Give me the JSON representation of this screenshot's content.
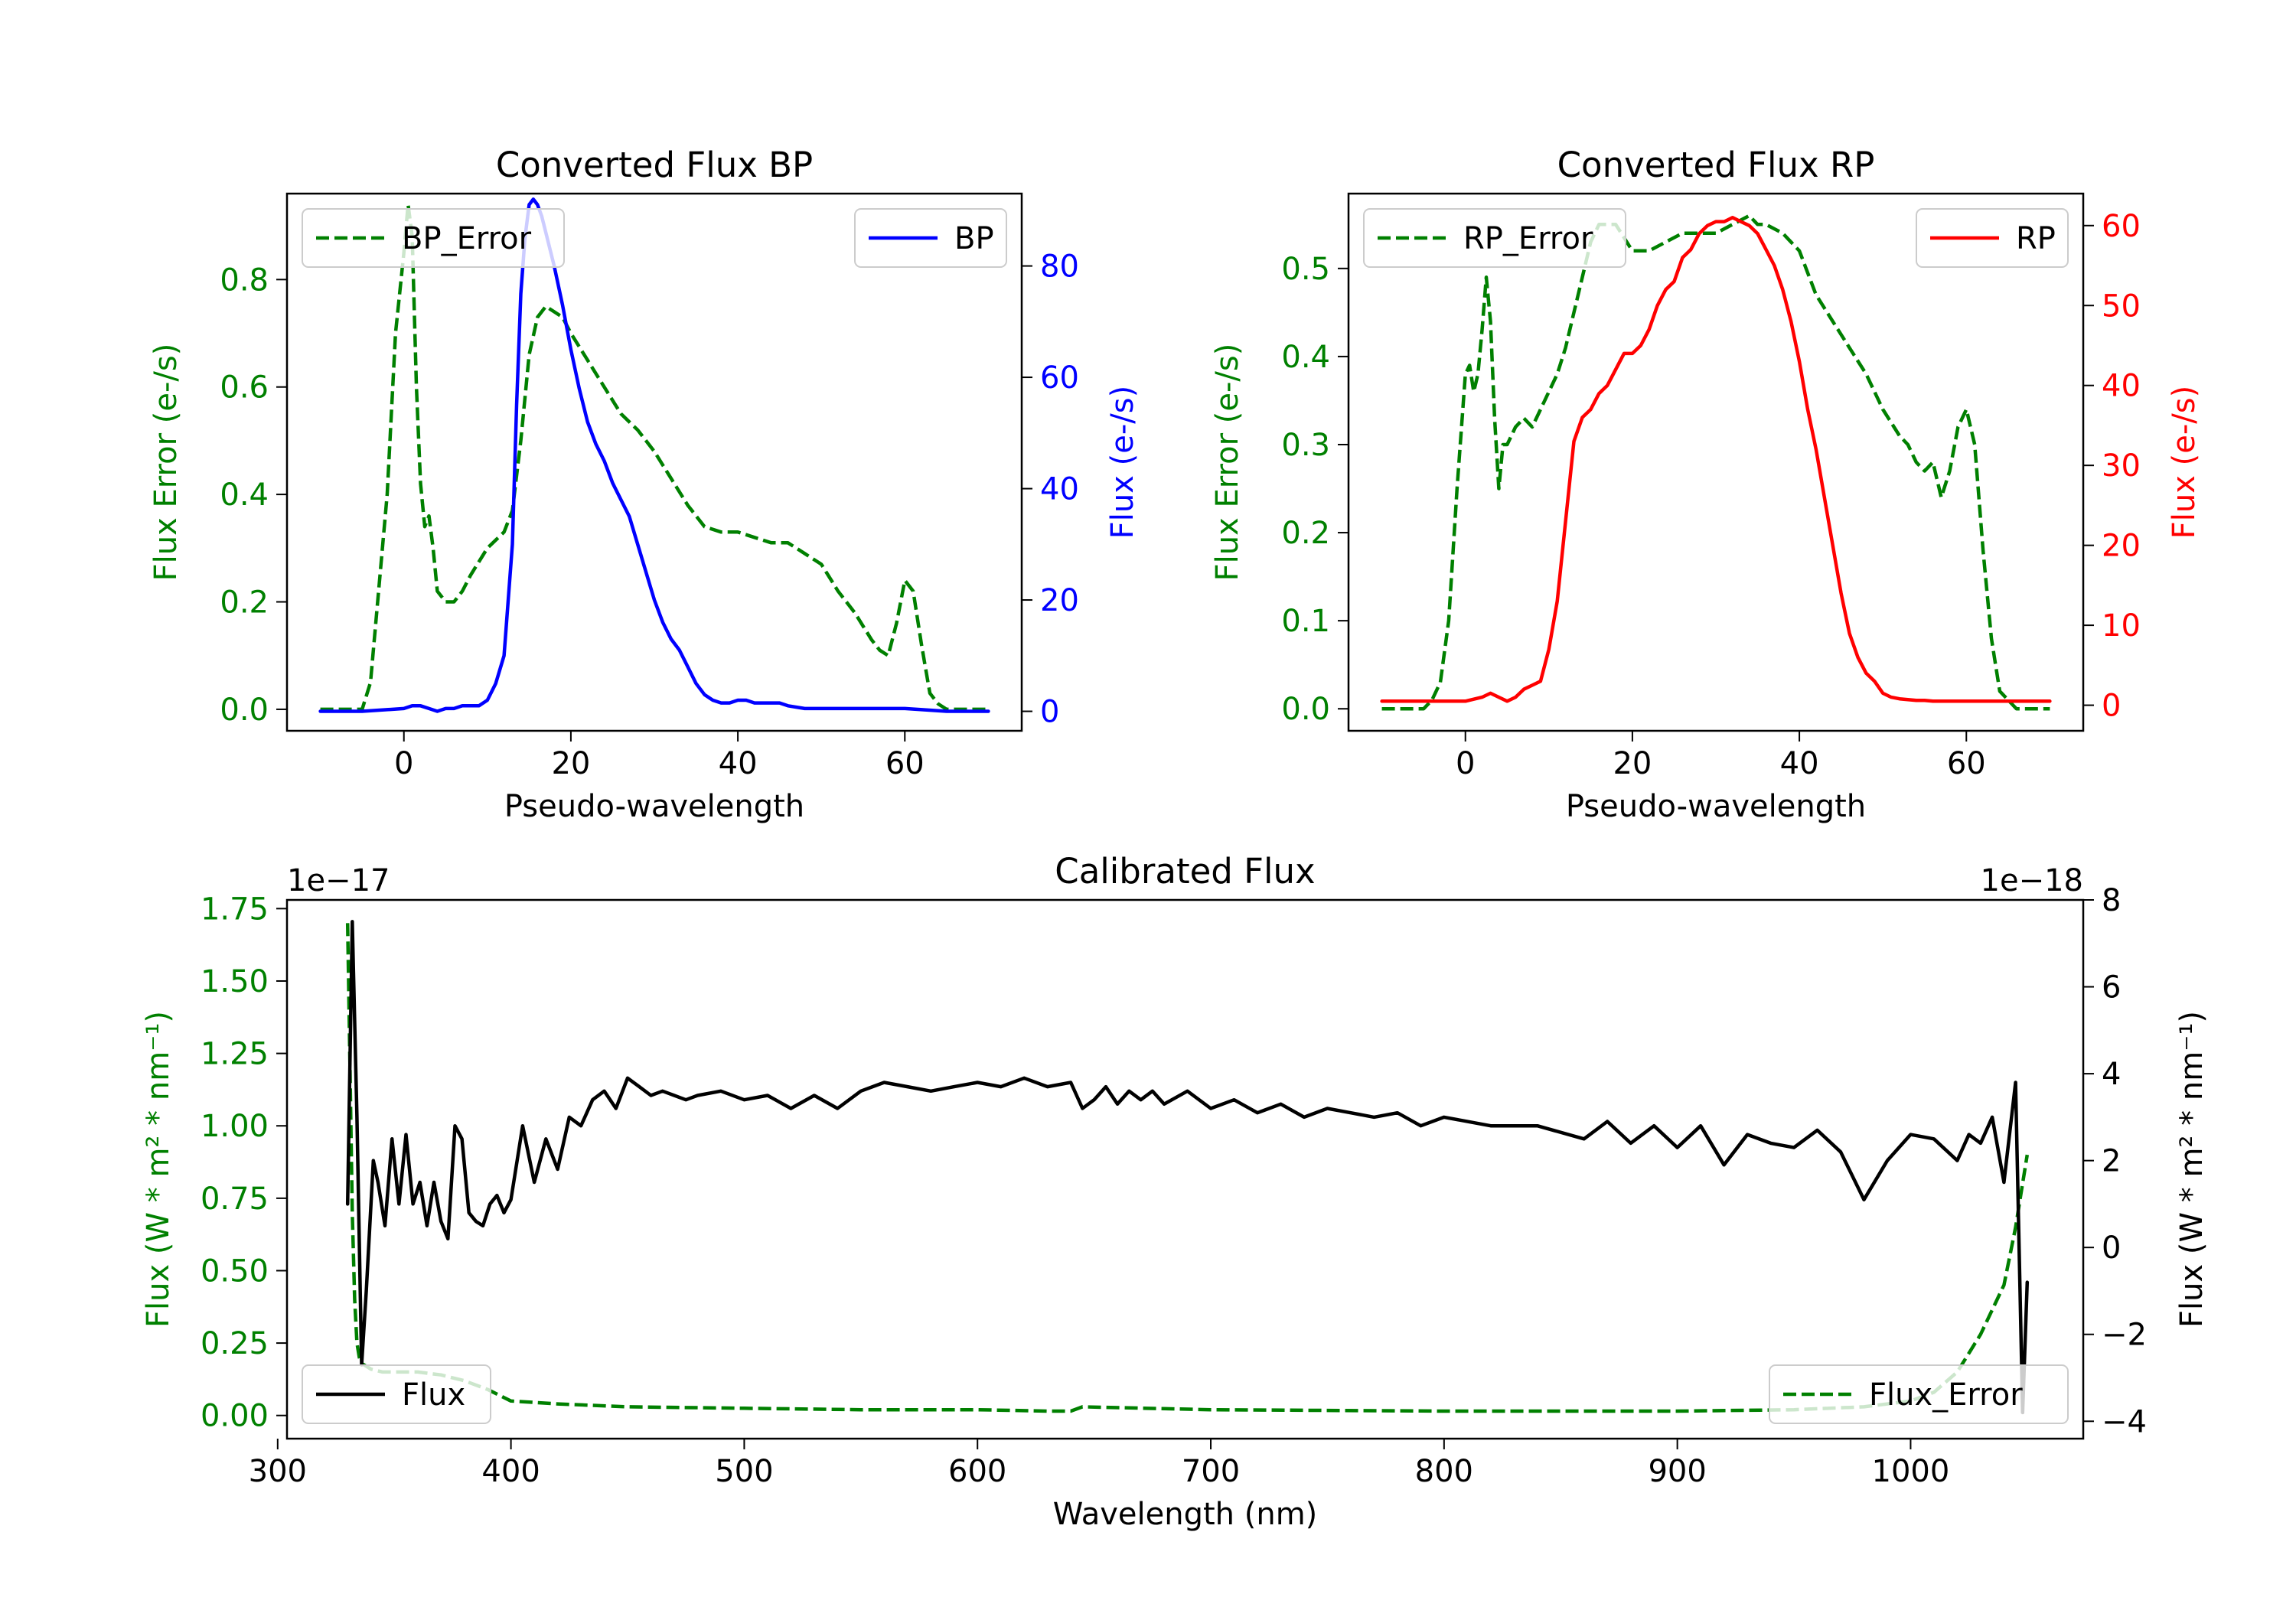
{
  "colors": {
    "green": "#008000",
    "blue": "#0000ff",
    "red": "#ff0000",
    "black": "#000000",
    "legend_border": "#cccccc"
  },
  "chart_data": [
    {
      "id": "bp",
      "type": "line",
      "title": "Converted Flux BP",
      "xlabel": "Pseudo-wavelength",
      "ylabel_left": "Flux Error (e-/s)",
      "ylabel_right": "Flux (e-/s)",
      "xlim": [
        -14,
        74
      ],
      "ylim_left": [
        -0.04,
        0.96
      ],
      "ylim_right": [
        -3.5,
        93
      ],
      "xticks": [
        0,
        20,
        40,
        60
      ],
      "xtick_labels": [
        "0",
        "20",
        "40",
        "60"
      ],
      "yticks_left": [
        0.0,
        0.2,
        0.4,
        0.6,
        0.8
      ],
      "ytick_labels_left": [
        "0.0",
        "0.2",
        "0.4",
        "0.6",
        "0.8"
      ],
      "yticks_right": [
        0,
        20,
        40,
        60,
        80
      ],
      "ytick_labels_right": [
        "0",
        "20",
        "40",
        "60",
        "80"
      ],
      "legend_left": "BP_Error",
      "legend_right": "BP",
      "series": [
        {
          "name": "BP_Error",
          "axis": "left",
          "color": "green",
          "style": "dashed",
          "x": [
            -10,
            -5,
            -4,
            -2,
            -1,
            0,
            0.5,
            1,
            1.5,
            2,
            2.5,
            3,
            3.5,
            4,
            5,
            6,
            7,
            8,
            10,
            12,
            13,
            14,
            15,
            16,
            17,
            18,
            19,
            20,
            22,
            24,
            26,
            28,
            30,
            32,
            34,
            36,
            38,
            40,
            42,
            44,
            46,
            48,
            50,
            52,
            54,
            56,
            57,
            58,
            59,
            60,
            61,
            62,
            63,
            64,
            65,
            67,
            70
          ],
          "y": [
            0,
            0,
            0.05,
            0.4,
            0.7,
            0.85,
            0.94,
            0.88,
            0.6,
            0.42,
            0.34,
            0.36,
            0.3,
            0.22,
            0.2,
            0.2,
            0.22,
            0.25,
            0.3,
            0.33,
            0.37,
            0.5,
            0.66,
            0.73,
            0.75,
            0.74,
            0.73,
            0.7,
            0.65,
            0.6,
            0.55,
            0.52,
            0.48,
            0.43,
            0.38,
            0.34,
            0.33,
            0.33,
            0.32,
            0.31,
            0.31,
            0.29,
            0.27,
            0.22,
            0.18,
            0.13,
            0.11,
            0.1,
            0.16,
            0.24,
            0.22,
            0.12,
            0.03,
            0.01,
            0,
            0,
            0
          ]
        },
        {
          "name": "BP",
          "axis": "right",
          "color": "blue",
          "style": "solid",
          "x": [
            -10,
            -5,
            0,
            1,
            2,
            3,
            4,
            5,
            6,
            7,
            8,
            9,
            10,
            11,
            12,
            13,
            13.5,
            14,
            14.5,
            15,
            15.5,
            16,
            16.5,
            17,
            18,
            19,
            20,
            21,
            22,
            23,
            24,
            25,
            26,
            27,
            28,
            29,
            30,
            31,
            32,
            33,
            34,
            35,
            36,
            37,
            38,
            39,
            40,
            41,
            42,
            43,
            44,
            45,
            46,
            48,
            50,
            55,
            60,
            65,
            70
          ],
          "y": [
            0,
            0,
            0.5,
            1,
            1,
            0.5,
            0,
            0.5,
            0.5,
            1,
            1,
            1,
            2,
            5,
            10,
            30,
            55,
            75,
            85,
            91,
            92,
            91,
            89,
            86,
            80,
            73,
            65,
            58,
            52,
            48,
            45,
            41,
            38,
            35,
            30,
            25,
            20,
            16,
            13,
            11,
            8,
            5,
            3,
            2,
            1.5,
            1.5,
            2,
            2,
            1.5,
            1.5,
            1.5,
            1.5,
            1,
            0.5,
            0.5,
            0.5,
            0.5,
            0,
            0
          ]
        }
      ]
    },
    {
      "id": "rp",
      "type": "line",
      "title": "Converted Flux RP",
      "xlabel": "Pseudo-wavelength",
      "ylabel_left": "Flux Error (e-/s)",
      "ylabel_right": "Flux (e-/s)",
      "xlim": [
        -14,
        74
      ],
      "ylim_left": [
        -0.025,
        0.585
      ],
      "ylim_right": [
        -3.2,
        64
      ],
      "xticks": [
        0,
        20,
        40,
        60
      ],
      "xtick_labels": [
        "0",
        "20",
        "40",
        "60"
      ],
      "yticks_left": [
        0.0,
        0.1,
        0.2,
        0.3,
        0.4,
        0.5
      ],
      "ytick_labels_left": [
        "0.0",
        "0.1",
        "0.2",
        "0.3",
        "0.4",
        "0.5"
      ],
      "yticks_right": [
        0,
        10,
        20,
        30,
        40,
        50,
        60
      ],
      "ytick_labels_right": [
        "0",
        "10",
        "20",
        "30",
        "40",
        "50",
        "60"
      ],
      "legend_left": "RP_Error",
      "legend_right": "RP",
      "series": [
        {
          "name": "RP_Error",
          "axis": "left",
          "color": "green",
          "style": "dashed",
          "x": [
            -10,
            -5,
            -4,
            -3,
            -2,
            -1,
            0,
            0.5,
            1,
            1.5,
            2,
            2.5,
            3,
            3.5,
            4,
            4.5,
            5,
            6,
            7,
            8,
            9,
            10,
            11,
            12,
            13,
            14,
            15,
            16,
            18,
            20,
            22,
            24,
            26,
            28,
            30,
            32,
            34,
            35,
            36,
            38,
            40,
            42,
            44,
            46,
            48,
            50,
            52,
            53,
            54,
            55,
            56,
            57,
            58,
            59,
            60,
            61,
            62,
            63,
            64,
            66,
            70
          ],
          "y": [
            0,
            0,
            0.01,
            0.03,
            0.1,
            0.25,
            0.38,
            0.39,
            0.36,
            0.38,
            0.43,
            0.49,
            0.44,
            0.33,
            0.25,
            0.3,
            0.3,
            0.32,
            0.33,
            0.32,
            0.34,
            0.36,
            0.38,
            0.41,
            0.45,
            0.49,
            0.53,
            0.55,
            0.55,
            0.52,
            0.52,
            0.53,
            0.54,
            0.54,
            0.54,
            0.55,
            0.56,
            0.55,
            0.55,
            0.54,
            0.52,
            0.47,
            0.44,
            0.41,
            0.38,
            0.34,
            0.31,
            0.3,
            0.28,
            0.27,
            0.28,
            0.24,
            0.27,
            0.32,
            0.34,
            0.3,
            0.18,
            0.08,
            0.02,
            0,
            0
          ]
        },
        {
          "name": "RP",
          "axis": "right",
          "color": "red",
          "style": "solid",
          "x": [
            -10,
            -5,
            0,
            2,
            3,
            4,
            5,
            6,
            7,
            8,
            9,
            10,
            11,
            12,
            13,
            14,
            15,
            16,
            17,
            18,
            19,
            20,
            21,
            22,
            23,
            24,
            25,
            26,
            27,
            28,
            29,
            30,
            31,
            32,
            33,
            34,
            35,
            36,
            37,
            38,
            39,
            40,
            41,
            42,
            43,
            44,
            45,
            46,
            47,
            48,
            49,
            50,
            51,
            52,
            53,
            54,
            55,
            56,
            58,
            60,
            65,
            70
          ],
          "y": [
            0.5,
            0.5,
            0.5,
            1,
            1.5,
            1,
            0.5,
            1,
            2,
            2.5,
            3,
            7,
            13,
            23,
            33,
            36,
            37,
            39,
            40,
            42,
            44,
            44,
            45,
            47,
            50,
            52,
            53,
            56,
            57,
            59,
            60,
            60.5,
            60.5,
            61,
            60.5,
            60,
            59,
            57,
            55,
            52,
            48,
            43,
            37,
            32,
            26,
            20,
            14,
            9,
            6,
            4,
            3,
            1.5,
            1,
            0.8,
            0.7,
            0.6,
            0.6,
            0.5,
            0.5,
            0.5,
            0.5,
            0.5
          ]
        }
      ]
    },
    {
      "id": "calibrated",
      "type": "line",
      "title": "Calibrated Flux",
      "xlabel": "Wavelength (nm)",
      "ylabel_left": "Flux (W * m² * nm⁻¹)",
      "ylabel_right": "Flux (W * m² * nm⁻¹)",
      "offset_left": "1e−17",
      "offset_right": "1e−18",
      "xlim": [
        304,
        1074
      ],
      "ylim_left": [
        -0.08,
        1.78
      ],
      "ylim_right": [
        -4.4,
        8.0
      ],
      "xticks": [
        300,
        400,
        500,
        600,
        700,
        800,
        900,
        1000
      ],
      "xtick_labels": [
        "300",
        "400",
        "500",
        "600",
        "700",
        "800",
        "900",
        "1000"
      ],
      "yticks_left": [
        0.0,
        0.25,
        0.5,
        0.75,
        1.0,
        1.25,
        1.5,
        1.75
      ],
      "ytick_labels_left": [
        "0.00",
        "0.25",
        "0.50",
        "0.75",
        "1.00",
        "1.25",
        "1.50",
        "1.75"
      ],
      "yticks_right": [
        -4,
        -2,
        0,
        2,
        4,
        6,
        8
      ],
      "ytick_labels_right": [
        "−4",
        "−2",
        "0",
        "2",
        "4",
        "6",
        "8"
      ],
      "legend_left": "Flux",
      "legend_right": "Flux_Error",
      "series": [
        {
          "name": "Flux_Error",
          "axis": "left",
          "color": "green",
          "style": "dashed",
          "x": [
            330,
            331,
            332,
            333,
            334,
            335,
            336,
            338,
            340,
            345,
            350,
            360,
            370,
            380,
            390,
            400,
            420,
            450,
            500,
            550,
            600,
            630,
            640,
            645,
            700,
            800,
            900,
            950,
            980,
            1000,
            1010,
            1020,
            1030,
            1040,
            1045,
            1050
          ],
          "y": [
            1.7,
            1.2,
            0.7,
            0.4,
            0.25,
            0.2,
            0.18,
            0.17,
            0.16,
            0.15,
            0.15,
            0.15,
            0.14,
            0.12,
            0.09,
            0.05,
            0.04,
            0.03,
            0.025,
            0.02,
            0.02,
            0.015,
            0.015,
            0.03,
            0.02,
            0.015,
            0.015,
            0.02,
            0.03,
            0.05,
            0.08,
            0.15,
            0.28,
            0.45,
            0.65,
            0.9
          ]
        },
        {
          "name": "Flux",
          "axis": "right",
          "color": "black",
          "style": "solid",
          "x": [
            330,
            332,
            334,
            336,
            338,
            341,
            343,
            346,
            349,
            352,
            355,
            358,
            361,
            364,
            367,
            370,
            373,
            376,
            379,
            382,
            385,
            388,
            391,
            394,
            397,
            400,
            405,
            410,
            415,
            420,
            425,
            430,
            435,
            440,
            445,
            450,
            455,
            460,
            465,
            470,
            475,
            480,
            490,
            500,
            510,
            520,
            530,
            540,
            550,
            560,
            570,
            580,
            590,
            600,
            610,
            620,
            630,
            640,
            645,
            650,
            655,
            660,
            665,
            670,
            675,
            680,
            690,
            700,
            710,
            720,
            730,
            740,
            750,
            760,
            770,
            780,
            790,
            800,
            820,
            840,
            860,
            870,
            880,
            890,
            900,
            910,
            920,
            930,
            940,
            950,
            960,
            970,
            980,
            990,
            1000,
            1010,
            1020,
            1025,
            1030,
            1035,
            1040,
            1045,
            1048,
            1050
          ],
          "y": [
            1,
            7.5,
            3,
            -2.7,
            -1,
            2,
            1.5,
            0.5,
            2.5,
            1,
            2.6,
            1,
            1.5,
            0.5,
            1.5,
            0.6,
            0.2,
            2.8,
            2.5,
            0.8,
            0.6,
            0.5,
            1,
            1.2,
            0.8,
            1.1,
            2.8,
            1.5,
            2.5,
            1.8,
            3,
            2.8,
            3.4,
            3.6,
            3.2,
            3.9,
            3.7,
            3.5,
            3.6,
            3.5,
            3.4,
            3.5,
            3.6,
            3.4,
            3.5,
            3.2,
            3.5,
            3.2,
            3.6,
            3.8,
            3.7,
            3.6,
            3.7,
            3.8,
            3.7,
            3.9,
            3.7,
            3.8,
            3.2,
            3.4,
            3.7,
            3.3,
            3.6,
            3.4,
            3.6,
            3.3,
            3.6,
            3.2,
            3.4,
            3.1,
            3.3,
            3.0,
            3.2,
            3.1,
            3.0,
            3.1,
            2.8,
            3.0,
            2.8,
            2.8,
            2.5,
            2.9,
            2.4,
            2.8,
            2.3,
            2.8,
            1.9,
            2.6,
            2.4,
            2.3,
            2.7,
            2.2,
            1.1,
            2.0,
            2.6,
            2.5,
            2.0,
            2.6,
            2.4,
            3.0,
            1.5,
            3.8,
            -3.8,
            -0.8
          ]
        }
      ]
    }
  ]
}
